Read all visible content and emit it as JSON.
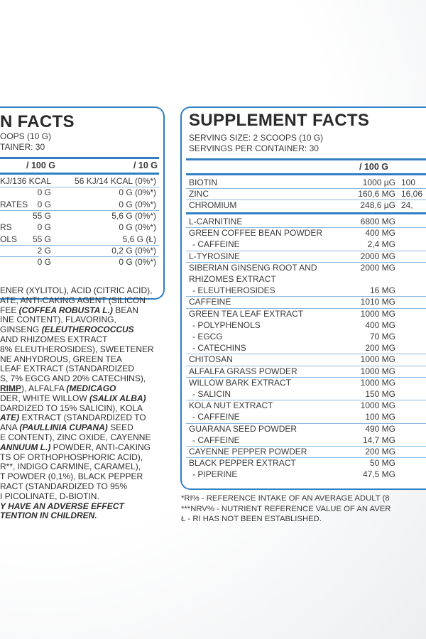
{
  "nutrition_panel": {
    "title": "N FACTS",
    "serving_size": "OOPS (10 G)",
    "servings": "TAINER: 30",
    "col_100g": "/ 100 G",
    "col_10g": "/ 10 G",
    "groups": [
      [
        {
          "label": "",
          "v100": "KJ/136 KCAL",
          "v10": "56 KJ/14 KCAL (0%*)"
        }
      ],
      [
        {
          "label": "",
          "v100": "0 G",
          "v10": "0 G (0%*)"
        },
        {
          "label": "RATES",
          "v100": "0 G",
          "v10": "0 G (0%*)"
        }
      ],
      [
        {
          "label": "",
          "v100": "55 G",
          "v10": "5,6 G (0%*)"
        },
        {
          "label": "RS",
          "v100": "0 G",
          "v10": "0 G (0%*)"
        },
        {
          "label": "OLS",
          "v100": "55 G",
          "v10": "5,6 G (Ł)"
        }
      ],
      [
        {
          "label": "",
          "v100": "2 G",
          "v10": "0,2 G (0%*)"
        }
      ],
      [
        {
          "label": "",
          "v100": "0 G",
          "v10": "0 G (0%*)"
        }
      ]
    ]
  },
  "ingredients": [
    [
      {
        "t": "ENER (XYLITOL), ACID (CITRIC ACID),"
      }
    ],
    [
      {
        "t": "ATE, ANTI-CAKING AGENT (SILICON"
      }
    ],
    [
      {
        "t": "FEE "
      },
      {
        "t": "(COFFEA ROBUSTA L.)",
        "s": "i"
      },
      {
        "t": " BEAN"
      }
    ],
    [
      {
        "t": "INE CONTENT), FLAVORING,"
      }
    ],
    [
      {
        "t": " GINSENG "
      },
      {
        "t": "(ELEUTHEROCOCCUS",
        "s": "i"
      }
    ],
    [
      {
        "t": "AND RHIZOMES EXTRACT"
      }
    ],
    [
      {
        "t": "8% ELEUTHEROSIDES), SWEETENER"
      }
    ],
    [
      {
        "t": "NE ANHYDROUS, GREEN TEA"
      }
    ],
    [
      {
        "t": " LEAF EXTRACT (STANDARDIZED"
      }
    ],
    [
      {
        "t": "S, 7% EGCG AND 20% CATECHINS),"
      }
    ],
    [
      {
        "t": "RIMP",
        "s": "b"
      },
      {
        "t": "), ALFALFA "
      },
      {
        "t": "(MEDICAGO",
        "s": "i"
      }
    ],
    [
      {
        "t": "DER, WHITE WILLOW "
      },
      {
        "t": "(SALIX ALBA)",
        "s": "i"
      }
    ],
    [
      {
        "t": "DARDIZED TO 15% SALICIN), KOLA"
      }
    ],
    [
      {
        "t": "ATE)",
        "s": "i"
      },
      {
        "t": " EXTRACT (STANDARDIZED TO"
      }
    ],
    [
      {
        "t": "ANA "
      },
      {
        "t": "(PAULLINIA CUPANA)",
        "s": "i"
      },
      {
        "t": " SEED"
      }
    ],
    [
      {
        "t": "E CONTENT), ZINC OXIDE, CAYENNE"
      }
    ],
    [
      {
        "t": "ANNUUM L.)",
        "s": "i"
      },
      {
        "t": " POWDER, ANTI-CAKING"
      }
    ],
    [
      {
        "t": "TS OF ORTHOPHOSPHORIC ACID),"
      }
    ],
    [
      {
        "t": "R**, INDIGO CARMINE, CARAMEL),"
      }
    ],
    [
      {
        "t": "T POWDER (0,1%), BLACK PEPPER"
      }
    ],
    [
      {
        "t": "RACT (STANDARDIZED TO 95%"
      }
    ],
    [
      {
        "t": "I PICOLINATE, D-BIOTIN."
      }
    ],
    [
      {
        "t": "Y HAVE AN ADVERSE EFFECT",
        "s": "i"
      }
    ],
    [
      {
        "t": "TENTION IN CHILDREN.",
        "s": "i"
      }
    ]
  ],
  "supplement_panel": {
    "title": "SUPPLEMENT FACTS",
    "serving_size": "SERVING SIZE: 2 SCOOPS (10 G)",
    "servings": "SERVINGS PER CONTAINER: 30",
    "col_100g": "/ 100 G",
    "vitamins": [
      [
        {
          "label": "BIOTIN",
          "v100": "1000 µG",
          "v10": "100"
        }
      ],
      [
        {
          "label": "ZINC",
          "v100": "160,6 MG",
          "v10": "16,06"
        }
      ],
      [
        {
          "label": "CHROMIUM",
          "v100": "248,6 µG",
          "v10": "24,"
        }
      ]
    ],
    "groups": [
      [
        {
          "label": "L-CARNITINE",
          "v100": "6800 MG"
        }
      ],
      [
        {
          "label": "GREEN COFFEE BEAN POWDER",
          "v100": "400 MG"
        },
        {
          "label": "- CAFFEINE",
          "v100": "2,4 MG",
          "sub": true
        }
      ],
      [
        {
          "label": "L-TYROSINE",
          "v100": "2000 MG"
        }
      ],
      [
        {
          "label": "SIBERIAN GINSENG ROOT AND",
          "v100": "2000 MG"
        },
        {
          "label": "RHIZOMES EXTRACT",
          "v100": ""
        },
        {
          "label": "- ELEUTHEROSIDES",
          "v100": "16 MG",
          "sub": true
        }
      ],
      [
        {
          "label": "CAFFEINE",
          "v100": "1010 MG"
        }
      ],
      [
        {
          "label": "GREEN TEA LEAF EXTRACT",
          "v100": "1000 MG"
        },
        {
          "label": "- POLYPHENOLS",
          "v100": "400 MG",
          "sub": true
        },
        {
          "label": "- EGCG",
          "v100": "70 MG",
          "sub": true
        },
        {
          "label": "- CATECHINS",
          "v100": "200 MG",
          "sub": true
        }
      ],
      [
        {
          "label": "CHITOSAN",
          "v100": "1000 MG"
        }
      ],
      [
        {
          "label": "ALFALFA GRASS POWDER",
          "v100": "1000 MG"
        }
      ],
      [
        {
          "label": "WILLOW BARK EXTRACT",
          "v100": "1000 MG"
        },
        {
          "label": "- SALICIN",
          "v100": "150 MG",
          "sub": true
        }
      ],
      [
        {
          "label": "KOLA NUT EXTRACT",
          "v100": "1000 MG"
        },
        {
          "label": "- CAFFEINE",
          "v100": "100 MG",
          "sub": true
        }
      ],
      [
        {
          "label": "GUARANA SEED POWDER",
          "v100": "490 MG"
        },
        {
          "label": "- CAFFEINE",
          "v100": "14,7 MG",
          "sub": true
        }
      ],
      [
        {
          "label": "CAYENNE PEPPER POWDER",
          "v100": "200 MG"
        }
      ],
      [
        {
          "label": "BLACK PEPPER EXTRACT",
          "v100": "50 MG"
        },
        {
          "label": "- PIPERINE",
          "v100": "47,5 MG",
          "sub": true
        }
      ]
    ]
  },
  "footnotes": [
    "*RI% -  REFERENCE INTAKE OF AN AVERAGE ADULT (8",
    "***NRV% - NUTRIENT REFERENCE VALUE OF AN AVER",
    "Ł - RI HAS NOT BEEN ESTABLISHED."
  ],
  "colors": {
    "accent": "#2f7fc4",
    "divider": "#8fb9de",
    "text": "#3a3a3a"
  }
}
